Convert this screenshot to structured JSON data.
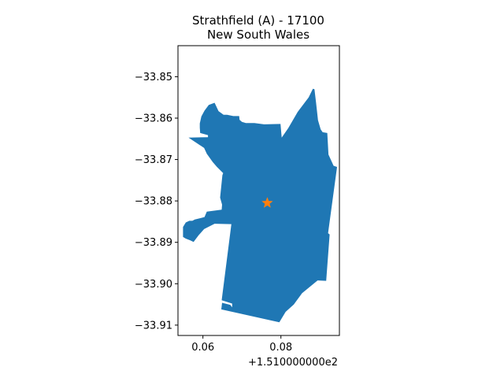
{
  "chart_data": {
    "type": "map",
    "title_line1": "Strathfield (A) - 17100",
    "title_line2": "New South Wales",
    "xlim": [
      151.0536,
      151.095
    ],
    "ylim": [
      -33.9125,
      -33.8425
    ],
    "x_offset_text": "+1.510000000e2",
    "x_ticks": [
      {
        "value": 151.06,
        "label": "0.06"
      },
      {
        "value": 151.08,
        "label": "0.08"
      }
    ],
    "y_ticks": [
      {
        "value": -33.85,
        "label": "−33.85"
      },
      {
        "value": -33.86,
        "label": "−33.86"
      },
      {
        "value": -33.87,
        "label": "−33.87"
      },
      {
        "value": -33.88,
        "label": "−33.88"
      },
      {
        "value": -33.89,
        "label": "−33.89"
      },
      {
        "value": -33.9,
        "label": "−33.90"
      },
      {
        "value": -33.91,
        "label": "−33.91"
      }
    ],
    "region_color": "#1f77b4",
    "centroid": {
      "lon": 151.0765,
      "lat": -33.8805,
      "marker": "star",
      "color": "#ff7f0e"
    },
    "boundary": [
      [
        151.0799,
        -33.8614
      ],
      [
        151.0802,
        -33.8647
      ],
      [
        151.0819,
        -33.8624
      ],
      [
        151.0843,
        -33.8585
      ],
      [
        151.0871,
        -33.855
      ],
      [
        151.0882,
        -33.8529
      ],
      [
        151.0886,
        -33.853
      ],
      [
        151.089,
        -33.8562
      ],
      [
        151.0895,
        -33.8605
      ],
      [
        151.0902,
        -33.8627
      ],
      [
        151.0907,
        -33.8634
      ],
      [
        151.0919,
        -33.8636
      ],
      [
        151.0922,
        -33.8688
      ],
      [
        151.0935,
        -33.8715
      ],
      [
        151.0944,
        -33.8718
      ],
      [
        151.0921,
        -33.8878
      ],
      [
        151.0925,
        -33.8881
      ],
      [
        151.0916,
        -33.8993
      ],
      [
        151.0894,
        -33.8992
      ],
      [
        151.088,
        -33.9003
      ],
      [
        151.0854,
        -33.9023
      ],
      [
        151.0833,
        -33.905
      ],
      [
        151.0812,
        -33.9068
      ],
      [
        151.0796,
        -33.9093
      ],
      [
        151.0647,
        -33.9062
      ],
      [
        151.0649,
        -33.9046
      ],
      [
        151.067,
        -33.9051
      ],
      [
        151.0675,
        -33.9057
      ],
      [
        151.0675,
        -33.9048
      ],
      [
        151.0648,
        -33.904
      ],
      [
        151.0673,
        -33.8856
      ],
      [
        151.063,
        -33.8855
      ],
      [
        151.0603,
        -33.8868
      ],
      [
        151.0589,
        -33.8883
      ],
      [
        151.0576,
        -33.8899
      ],
      [
        151.0567,
        -33.8895
      ],
      [
        151.0556,
        -33.8891
      ],
      [
        151.0549,
        -33.8887
      ],
      [
        151.0549,
        -33.8863
      ],
      [
        151.0556,
        -33.8852
      ],
      [
        151.0565,
        -33.8848
      ],
      [
        151.0573,
        -33.8848
      ],
      [
        151.0579,
        -33.8845
      ],
      [
        151.0604,
        -33.8839
      ],
      [
        151.061,
        -33.8826
      ],
      [
        151.0648,
        -33.8821
      ],
      [
        151.0649,
        -33.8809
      ],
      [
        151.0644,
        -33.8792
      ],
      [
        151.065,
        -33.8738
      ],
      [
        151.0652,
        -33.8733
      ],
      [
        151.0636,
        -33.8718
      ],
      [
        151.0625,
        -33.8706
      ],
      [
        151.061,
        -33.8686
      ],
      [
        151.0603,
        -33.8672
      ],
      [
        151.0563,
        -33.8647
      ],
      [
        151.0613,
        -33.8646
      ],
      [
        151.0613,
        -33.8641
      ],
      [
        151.0593,
        -33.8636
      ],
      [
        151.0592,
        -33.8623
      ],
      [
        151.0592,
        -33.8613
      ],
      [
        151.0596,
        -33.8596
      ],
      [
        151.0604,
        -33.8582
      ],
      [
        151.0615,
        -33.8568
      ],
      [
        151.063,
        -33.8563
      ],
      [
        151.064,
        -33.8583
      ],
      [
        151.0653,
        -33.8592
      ],
      [
        151.0662,
        -33.8592
      ],
      [
        151.0678,
        -33.8595
      ],
      [
        151.0693,
        -33.8595
      ],
      [
        151.0694,
        -33.8604
      ],
      [
        151.07,
        -33.8609
      ],
      [
        151.071,
        -33.8612
      ],
      [
        151.072,
        -33.8612
      ],
      [
        151.0732,
        -33.8612
      ],
      [
        151.0757,
        -33.8615
      ]
    ]
  }
}
